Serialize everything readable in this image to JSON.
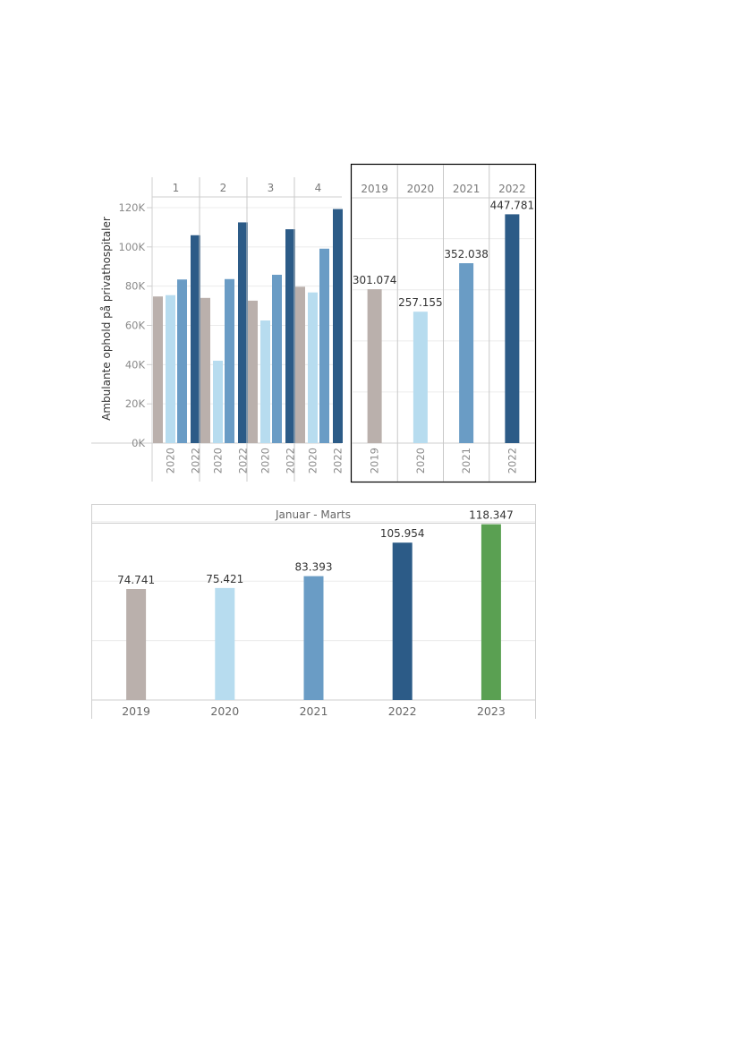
{
  "colors": {
    "2019": "#bab0ac",
    "2020": "#b7dcef",
    "2021": "#6a9cc5",
    "2022": "#2c5b87",
    "2023": "#5aa052"
  },
  "chart_data": [
    {
      "type": "bar",
      "title": "",
      "xlabel": "",
      "ylabel": "Ambulante ophold på privathospitaler",
      "ylim": [
        0,
        120000
      ],
      "yticks": [
        "0K",
        "20K",
        "40K",
        "60K",
        "80K",
        "100K",
        "120K"
      ],
      "ytick_values": [
        0,
        20000,
        40000,
        60000,
        80000,
        100000,
        120000
      ],
      "grid": true,
      "panels": [
        "1",
        "2",
        "3",
        "4"
      ],
      "categories": [
        "2019",
        "2020",
        "2021",
        "2022"
      ],
      "tick_labels_shown": [
        "2020",
        "2022"
      ],
      "series": [
        {
          "panel": "1",
          "values": [
            74741,
            75421,
            83393,
            105954
          ]
        },
        {
          "panel": "2",
          "values": [
            74000,
            42000,
            83600,
            112500
          ]
        },
        {
          "panel": "3",
          "values": [
            72600,
            62500,
            85800,
            109000
          ]
        },
        {
          "panel": "4",
          "values": [
            79700,
            76800,
            99100,
            119300
          ]
        }
      ]
    },
    {
      "type": "bar",
      "title": "",
      "xlabel": "",
      "ylabel": "",
      "ylim": [
        0,
        480000
      ],
      "grid": true,
      "categories": [
        "2019",
        "2020",
        "2021",
        "2022"
      ],
      "values": [
        301074,
        257155,
        352038,
        447781
      ],
      "data_labels": [
        "301.074",
        "257.155",
        "352.038",
        "447.781"
      ]
    },
    {
      "type": "bar",
      "title": "Januar - Marts",
      "xlabel": "",
      "ylabel": "",
      "ylim": [
        0,
        132000
      ],
      "grid": true,
      "categories": [
        "2019",
        "2020",
        "2021",
        "2022",
        "2023"
      ],
      "values": [
        74741,
        75421,
        83393,
        105954,
        118347
      ],
      "data_labels": [
        "74.741",
        "75.421",
        "83.393",
        "105.954",
        "118.347"
      ]
    }
  ]
}
